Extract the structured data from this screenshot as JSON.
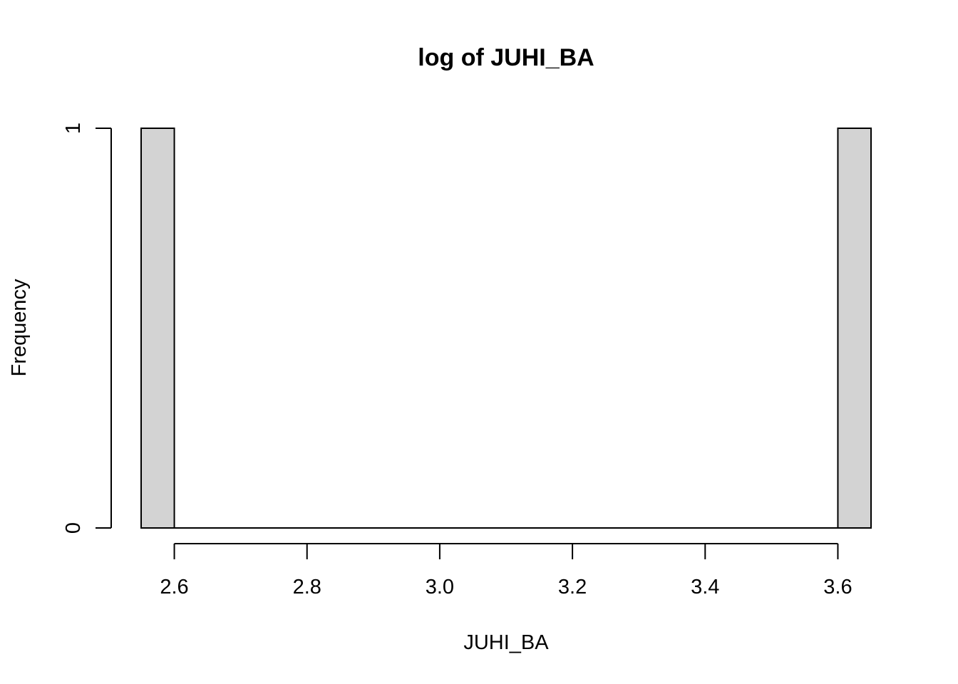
{
  "chart_data": {
    "type": "bar",
    "title": "log of JUHI_BA",
    "xlabel": "JUHI_BA",
    "ylabel": "Frequency",
    "bins": [
      {
        "x0": 2.55,
        "x1": 2.6,
        "count": 1
      },
      {
        "x0": 3.6,
        "x1": 3.65,
        "count": 1
      }
    ],
    "x_ticks": [
      2.6,
      2.8,
      3.0,
      3.2,
      3.4,
      3.6
    ],
    "x_tick_labels": [
      "2.6",
      "2.8",
      "3.0",
      "3.2",
      "3.4",
      "3.6"
    ],
    "y_ticks": [
      0,
      1
    ],
    "y_tick_labels": [
      "0",
      "1"
    ],
    "xlim": [
      2.55,
      3.65
    ],
    "ylim": [
      0,
      1
    ],
    "grid": false,
    "legend": false,
    "bar_fill": "#d3d3d3",
    "bar_stroke": "#000000"
  }
}
